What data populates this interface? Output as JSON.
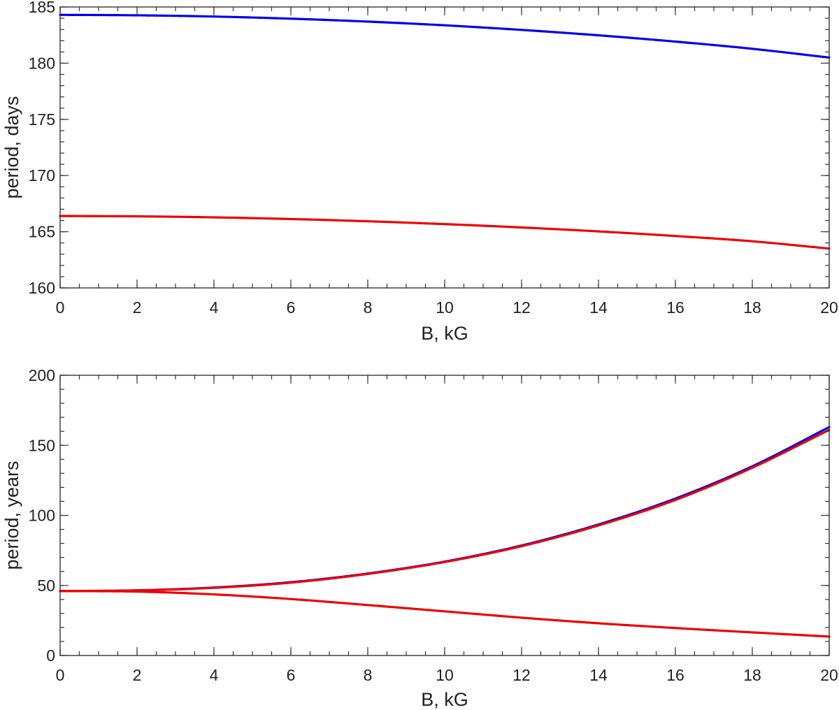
{
  "chart_data": [
    {
      "type": "line",
      "xlabel": "B, kG",
      "ylabel": "period, days",
      "xlim": [
        0,
        20
      ],
      "ylim": [
        160,
        185
      ],
      "xticks": [
        0,
        2,
        4,
        6,
        8,
        10,
        12,
        14,
        16,
        18,
        20
      ],
      "yticks": [
        160,
        165,
        170,
        175,
        180,
        185
      ],
      "x_minor_step": 0.5,
      "y_minor_step": 1,
      "grid": false,
      "x": [
        0,
        2,
        4,
        6,
        8,
        10,
        12,
        14,
        16,
        18,
        20
      ],
      "series": [
        {
          "color": "#0000ee",
          "values": [
            184.3,
            184.26,
            184.15,
            183.96,
            183.7,
            183.37,
            182.96,
            182.48,
            181.92,
            181.28,
            180.5
          ]
        },
        {
          "color": "#ee0000",
          "values": [
            166.4,
            166.37,
            166.28,
            166.13,
            165.93,
            165.68,
            165.38,
            165.03,
            164.62,
            164.15,
            163.5
          ]
        }
      ]
    },
    {
      "type": "line",
      "xlabel": "B, kG",
      "ylabel": "period, years",
      "xlim": [
        0,
        20
      ],
      "ylim": [
        0,
        200
      ],
      "xticks": [
        0,
        2,
        4,
        6,
        8,
        10,
        12,
        14,
        16,
        18,
        20
      ],
      "yticks": [
        0,
        50,
        100,
        150,
        200
      ],
      "x_minor_step": 0.5,
      "y_minor_step": 10,
      "grid": false,
      "x": [
        0,
        2,
        4,
        6,
        8,
        10,
        12,
        14,
        16,
        18,
        20
      ],
      "series": [
        {
          "color": "#0000ee",
          "values": [
            46,
            46.5,
            48.5,
            52.3,
            58.5,
            67,
            78.5,
            93.5,
            112,
            135,
            163
          ]
        },
        {
          "color": "#ee0000",
          "values": [
            46,
            46.4,
            48.3,
            52,
            58.2,
            66.7,
            78,
            92.8,
            111,
            134,
            161
          ]
        },
        {
          "color": "#ee0000",
          "values": [
            46,
            45.6,
            43.6,
            40.3,
            36,
            31.5,
            27,
            23,
            19.6,
            16.5,
            13.5
          ]
        }
      ]
    }
  ]
}
